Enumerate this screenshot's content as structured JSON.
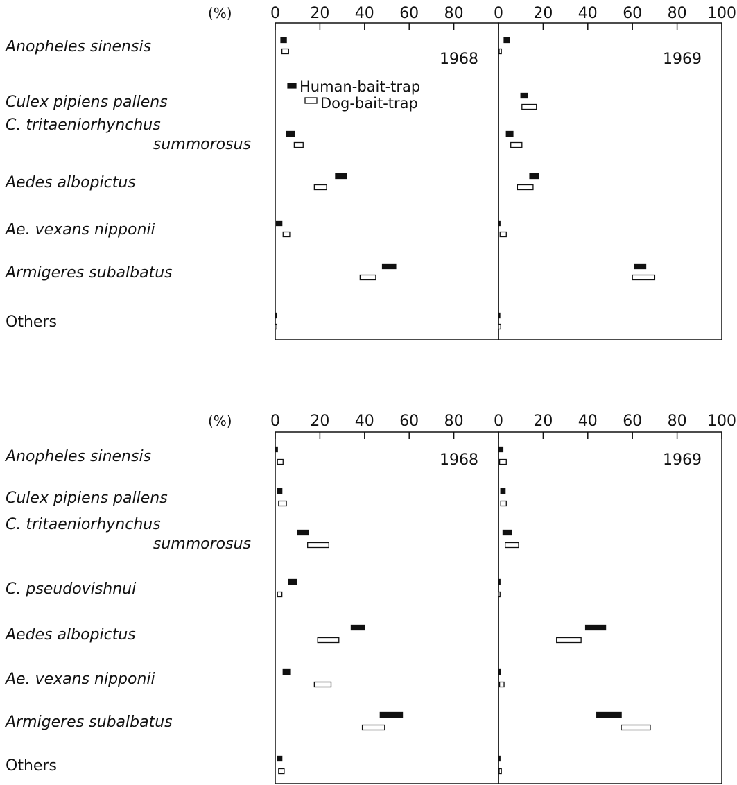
{
  "chart_data": [
    {
      "type": "bar",
      "panel": "top",
      "unit_label": "(%)",
      "years": [
        "1968",
        "1969"
      ],
      "xlim": [
        0,
        100
      ],
      "xticks": [
        "0",
        "20",
        "40",
        "60",
        "80",
        "0",
        "20",
        "40",
        "60",
        "80",
        "100"
      ],
      "legend": {
        "entries": [
          "Human-bait-trap",
          "Dog-bait-trap"
        ],
        "placement": "top-center of 1968 panel"
      },
      "categories": [
        {
          "label": "Anopheles sinensis",
          "italic": true
        },
        {
          "label": "Culex pipiens pallens",
          "italic": true
        },
        {
          "label": "C. tritaeniorhynchus",
          "label2": "summorosus",
          "italic": true
        },
        {
          "label": "Aedes albopictus",
          "italic": true
        },
        {
          "label": "Ae. vexans nipponii",
          "italic": true
        },
        {
          "label": "Armigeres subalbatus",
          "italic": true
        },
        {
          "label": "Others",
          "italic": false
        }
      ],
      "series": [
        {
          "name": "Human-bait-trap",
          "fill": "#111111",
          "values": {
            "1968": [
              [
                2.5,
                5
              ],
              null,
              [
                5,
                8.5
              ],
              [
                27,
                32
              ],
              [
                0.5,
                3
              ],
              [
                48,
                54
              ],
              [
                0,
                0.5
              ]
            ],
            "1969": [
              [
                2.5,
                5
              ],
              [
                10,
                13
              ],
              [
                3.5,
                6.5
              ],
              [
                14,
                18
              ],
              [
                0,
                0.7
              ],
              [
                61,
                66
              ],
              [
                0,
                0.5
              ]
            ]
          }
        },
        {
          "name": "Dog-bait-trap",
          "fill": "#ffffff",
          "values": {
            "1968": [
              [
                3,
                6
              ],
              null,
              [
                8.5,
                12.5
              ],
              [
                17.5,
                23
              ],
              [
                3.5,
                6.5
              ],
              [
                38,
                45
              ],
              [
                0,
                0.7
              ]
            ],
            "1969": [
              [
                0.3,
                1.3
              ],
              [
                10.5,
                17
              ],
              [
                5.5,
                10.5
              ],
              [
                8.5,
                15.5
              ],
              [
                0.7,
                3.5
              ],
              [
                60,
                70
              ],
              [
                0,
                1
              ]
            ]
          }
        }
      ]
    },
    {
      "type": "bar",
      "panel": "bottom",
      "unit_label": "(%)",
      "years": [
        "1968",
        "1969"
      ],
      "xlim": [
        0,
        100
      ],
      "xticks": [
        "0",
        "20",
        "40",
        "60",
        "80",
        "0",
        "20",
        "40",
        "60",
        "80",
        "100"
      ],
      "categories": [
        {
          "label": "Anopheles sinensis",
          "italic": true
        },
        {
          "label": "Culex pipiens pallens",
          "italic": true
        },
        {
          "label": "C. tritaeniorhynchus",
          "label2": "summorosus",
          "italic": true
        },
        {
          "label": "C. pseudovishnui",
          "italic": true
        },
        {
          "label": "Aedes albopictus",
          "italic": true
        },
        {
          "label": "Ae. vexans nipponii",
          "italic": true
        },
        {
          "label": "Armigeres subalbatus",
          "italic": true
        },
        {
          "label": "Others",
          "italic": false
        }
      ],
      "series": [
        {
          "name": "Human-bait-trap",
          "fill": "#111111",
          "values": {
            "1968": [
              [
                0,
                1
              ],
              [
                1,
                3
              ],
              [
                10,
                15
              ],
              [
                6,
                9.5
              ],
              [
                34,
                40
              ],
              [
                3.5,
                6.5
              ],
              [
                47,
                57
              ],
              [
                1,
                3
              ]
            ],
            "1969": [
              [
                0,
                2
              ],
              [
                1,
                3
              ],
              [
                2,
                6
              ],
              [
                0,
                0.7
              ],
              [
                39,
                48
              ],
              [
                0,
                1
              ],
              [
                44,
                55
              ],
              [
                0,
                0.7
              ]
            ]
          }
        },
        {
          "name": "Dog-bait-trap",
          "fill": "#ffffff",
          "values": {
            "1968": [
              [
                1,
                3.5
              ],
              [
                1.5,
                5
              ],
              [
                14.5,
                24
              ],
              [
                1,
                3
              ],
              [
                19,
                28.5
              ],
              [
                17.5,
                25
              ],
              [
                39,
                49
              ],
              [
                1.5,
                4
              ]
            ],
            "1969": [
              [
                0.5,
                3.5
              ],
              [
                1,
                3.5
              ],
              [
                3,
                9
              ],
              [
                0,
                0.7
              ],
              [
                26,
                37
              ],
              [
                0.5,
                2.5
              ],
              [
                55,
                68
              ],
              [
                0.3,
                1.3
              ]
            ]
          }
        }
      ]
    }
  ]
}
